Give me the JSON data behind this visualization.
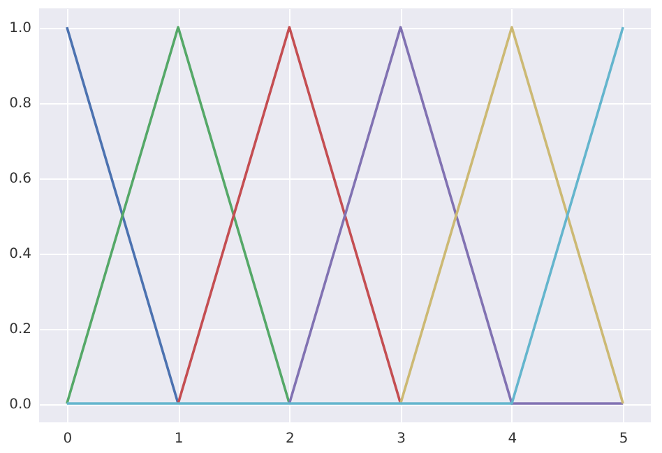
{
  "chart_data": {
    "type": "line",
    "x": [
      0,
      1,
      2,
      3,
      4,
      5
    ],
    "series": [
      {
        "color": "#4c72b0",
        "values": [
          1,
          0,
          null,
          null,
          null,
          null
        ]
      },
      {
        "color": "#55a868",
        "values": [
          0,
          1,
          0,
          null,
          null,
          null
        ]
      },
      {
        "color": "#c44e52",
        "values": [
          null,
          0,
          1,
          0,
          null,
          null
        ]
      },
      {
        "color": "#8172b2",
        "values": [
          null,
          null,
          0,
          1,
          0,
          0
        ]
      },
      {
        "color": "#ccb974",
        "values": [
          null,
          null,
          null,
          0,
          1,
          0
        ]
      },
      {
        "color": "#64b5cd",
        "values": [
          0,
          0,
          0,
          0,
          0,
          1
        ]
      }
    ],
    "xlim": [
      -0.25,
      5.25
    ],
    "xticks": [
      0,
      1,
      2,
      3,
      4,
      5
    ],
    "ylim": [
      -0.05,
      1.05
    ],
    "yticks": [
      {
        "value": 0,
        "label": "0.0"
      },
      {
        "value": 0.2,
        "label": "0.2"
      },
      {
        "value": 0.4,
        "label": "0.4"
      },
      {
        "value": 0.6,
        "label": "0.6"
      },
      {
        "value": 0.8,
        "label": "0.8"
      },
      {
        "value": 1,
        "label": "1.0"
      }
    ],
    "grid": true,
    "line_style": "solid"
  }
}
